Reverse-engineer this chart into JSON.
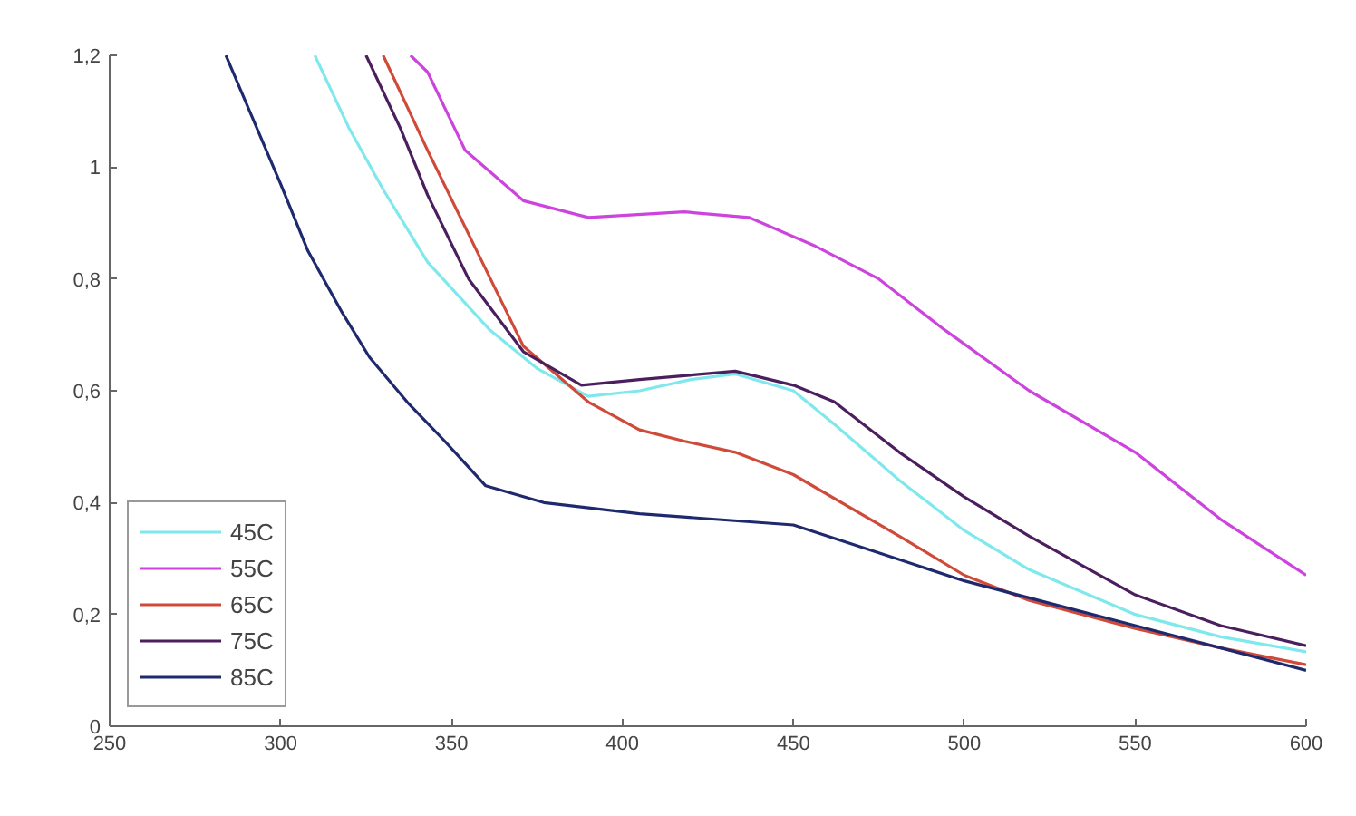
{
  "chart_data": {
    "type": "line",
    "xlim": [
      250,
      600
    ],
    "ylim": [
      0,
      1.2
    ],
    "xticks": [
      250,
      300,
      350,
      400,
      450,
      500,
      550,
      600
    ],
    "yticks": [
      0,
      {
        "value": 0.2,
        "label": "0,2"
      },
      {
        "value": 0.4,
        "label": "0,4"
      },
      {
        "value": 0.6,
        "label": "0,6"
      },
      {
        "value": 0.8,
        "label": "0,8"
      },
      1,
      {
        "value": 1.2,
        "label": "1,2"
      }
    ],
    "grid": false,
    "legend": "bottom left",
    "marker": "none",
    "line_style": "solid",
    "series": [
      {
        "name": "45C",
        "color": "#7fe8ec",
        "x": [
          310,
          320,
          330,
          343,
          361,
          375,
          390,
          405,
          420,
          433,
          450,
          462,
          481,
          500,
          519,
          550,
          575,
          600
        ],
        "values": [
          1.2,
          1.07,
          0.96,
          0.83,
          0.71,
          0.64,
          0.59,
          0.6,
          0.62,
          0.63,
          0.6,
          0.54,
          0.44,
          0.35,
          0.28,
          0.2,
          0.16,
          0.133
        ]
      },
      {
        "name": "55C",
        "color": "#cc44dd",
        "x": [
          338,
          343,
          354,
          371,
          390,
          418,
          437,
          456,
          475,
          494,
          519,
          550,
          575,
          600
        ],
        "values": [
          1.2,
          1.17,
          1.03,
          0.94,
          0.91,
          0.92,
          0.91,
          0.86,
          0.8,
          0.71,
          0.6,
          0.49,
          0.37,
          0.27
        ]
      },
      {
        "name": "65C",
        "color": "#d04a3a",
        "x": [
          330,
          343,
          355,
          371,
          390,
          405,
          418,
          433,
          450,
          481,
          500,
          519,
          550,
          575,
          600
        ],
        "values": [
          1.2,
          1.03,
          0.88,
          0.68,
          0.58,
          0.53,
          0.51,
          0.49,
          0.45,
          0.34,
          0.27,
          0.225,
          0.175,
          0.14,
          0.11
        ]
      },
      {
        "name": "75C",
        "color": "#4b1f5e",
        "x": [
          325,
          335,
          343,
          355,
          371,
          388,
          405,
          433,
          450,
          462,
          481,
          500,
          519,
          550,
          575,
          600
        ],
        "values": [
          1.2,
          1.07,
          0.95,
          0.8,
          0.67,
          0.61,
          0.62,
          0.635,
          0.61,
          0.58,
          0.49,
          0.41,
          0.34,
          0.235,
          0.18,
          0.144
        ]
      },
      {
        "name": "85C",
        "color": "#1f2a6e",
        "x": [
          284,
          300,
          308,
          318,
          326,
          337,
          348,
          360,
          377,
          405,
          450,
          475,
          500,
          525,
          550,
          575,
          600
        ],
        "values": [
          1.2,
          0.97,
          0.85,
          0.74,
          0.66,
          0.58,
          0.51,
          0.43,
          0.4,
          0.38,
          0.36,
          0.31,
          0.26,
          0.22,
          0.18,
          0.14,
          0.1
        ]
      }
    ]
  }
}
